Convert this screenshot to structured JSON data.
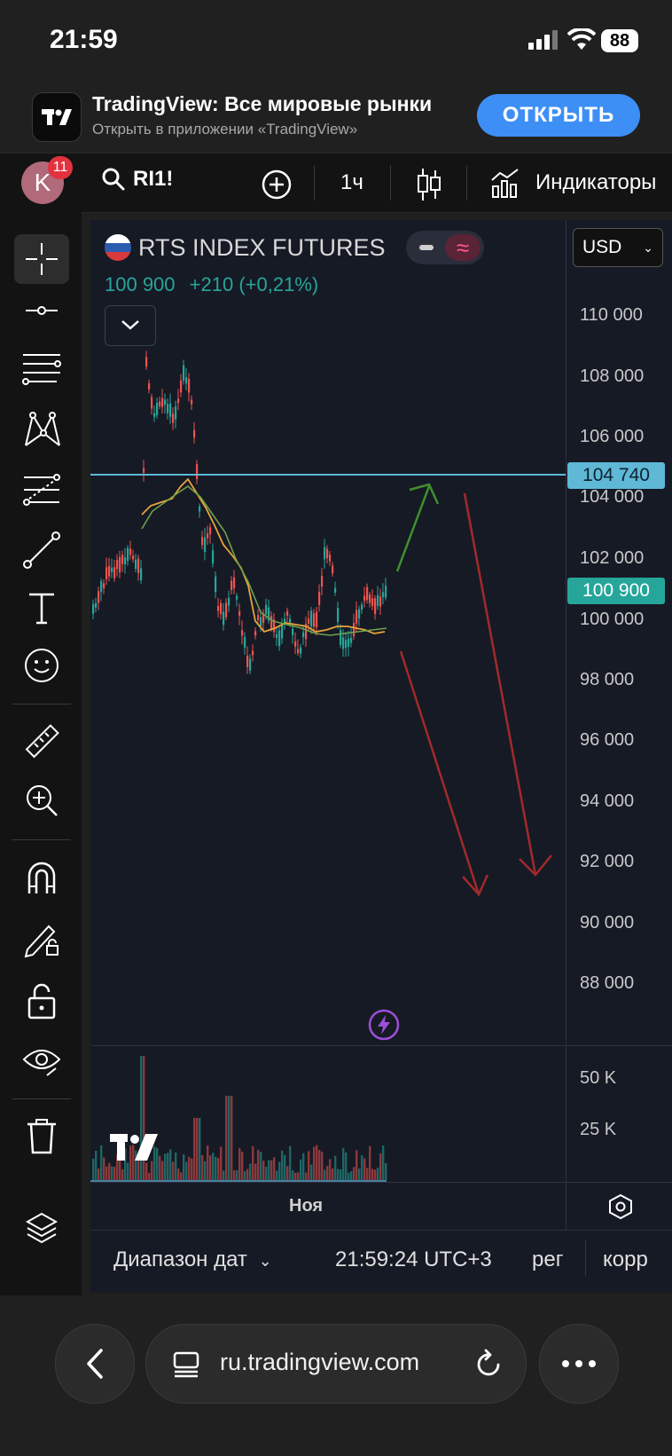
{
  "status_bar": {
    "time": "21:59",
    "battery": "88"
  },
  "app_banner": {
    "title": "TradingView: Все мировые рынки",
    "subtitle": "Открыть в приложении «TradingView»",
    "open_label": "ОТКРЫТЬ"
  },
  "toolbar": {
    "avatar_letter": "K",
    "notifications": "11",
    "symbol": "RI1!",
    "interval": "1ч",
    "indicators_label": "Индикаторы"
  },
  "chart": {
    "symbol_name": "RTS INDEX FUTURES",
    "last_price": "100 900",
    "change": "+210 (+0,21%)",
    "currency": "USD",
    "price_ticks": [
      "110 000",
      "108 000",
      "106 000",
      "104 000",
      "102 000",
      "100 000",
      "98 000",
      "96 000",
      "94 000",
      "92 000",
      "90 000",
      "88 000"
    ],
    "horizontal_line_label": "104 740",
    "last_price_label": "100 900",
    "volume_ticks": [
      "50 K",
      "25 K"
    ],
    "time_label": "Ноя",
    "colors": {
      "up": "#26a69a",
      "down": "#ef5350",
      "line": "#5fb8d6",
      "ma": "#e8a33d",
      "arrow_up": "#3f8f2f",
      "arrow_down": "#a12a2a"
    }
  },
  "bottom_bar": {
    "date_range": "Диапазон дат",
    "time": "21:59:24 UTC+3",
    "session": "рег",
    "adjust": "корр"
  },
  "browser": {
    "url": "ru.tradingview.com"
  }
}
